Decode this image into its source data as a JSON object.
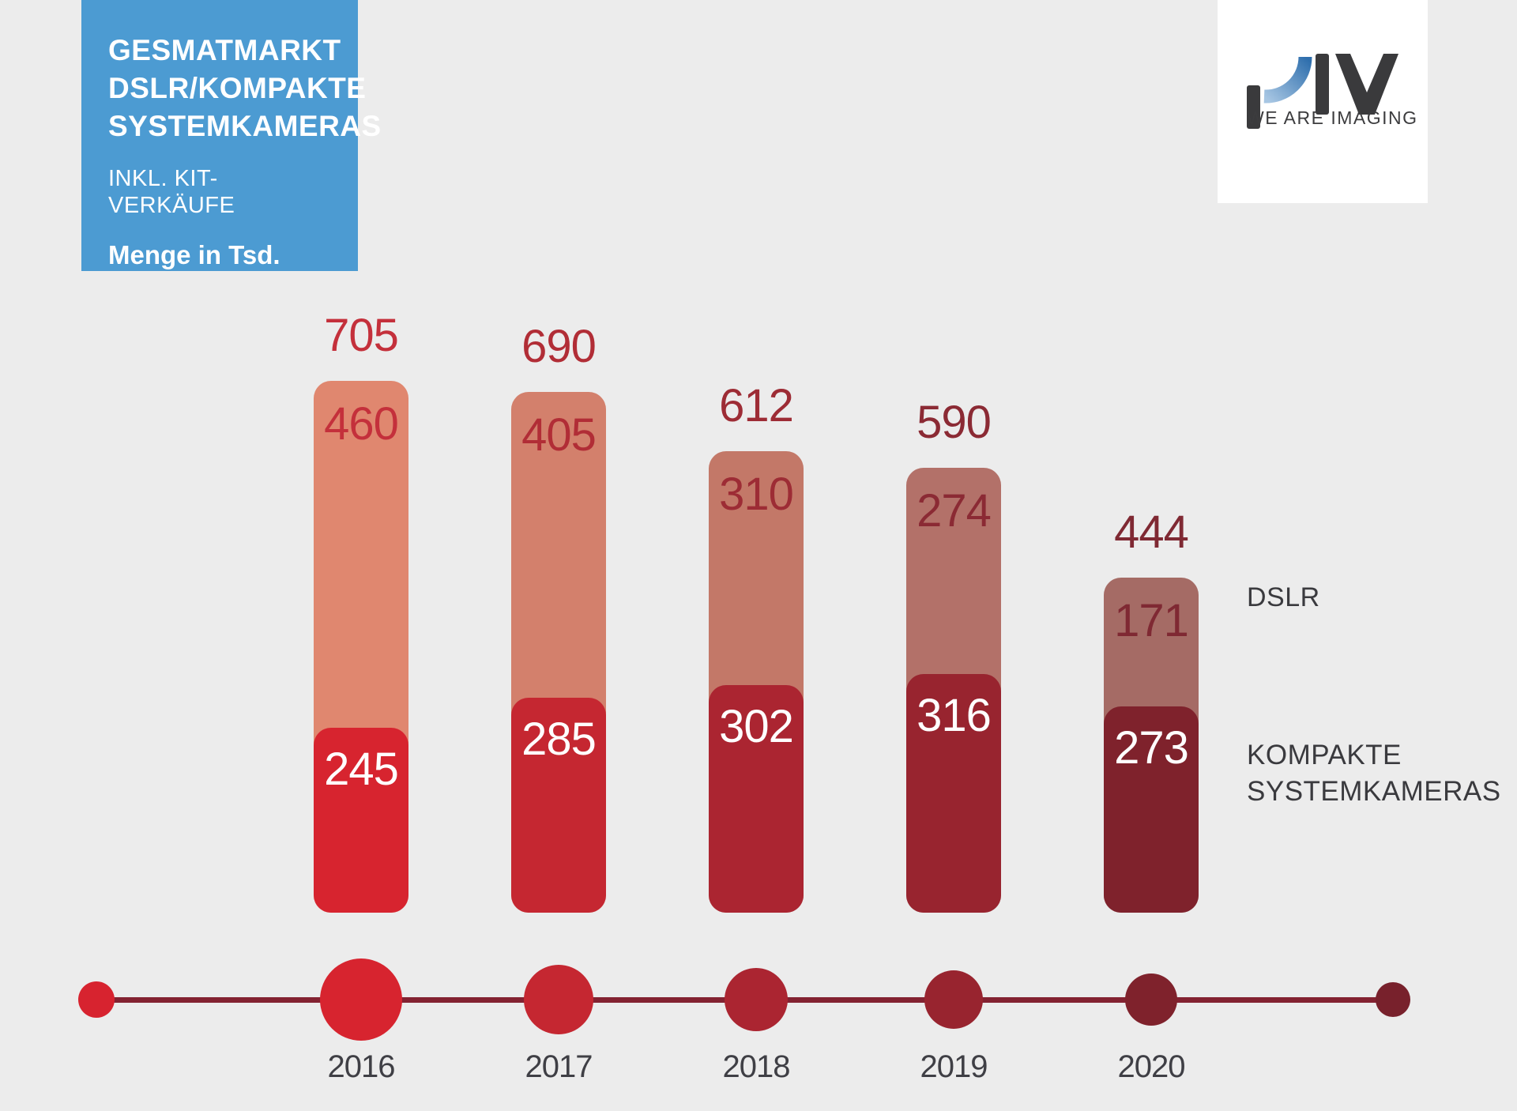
{
  "page": {
    "background": "#ECECEC"
  },
  "title_box": {
    "background": "#4C9BD2",
    "line1": "GESMATMARKT",
    "line2": "DSLR/KOMPAKTE",
    "line3": "SYSTEMKAMERAS",
    "subtitle": "INKL. KIT-VERKÄUFE",
    "unit_label": "Menge in Tsd."
  },
  "logo": {
    "tagline": "WE ARE IMAGING",
    "dark_color": "#3A3A3C",
    "blue_gradient_from": "#A7C6E3",
    "blue_gradient_to": "#2F6FAD"
  },
  "legend": {
    "dslr_label": "DSLR",
    "kompakte_line1": "KOMPAKTE",
    "kompakte_line2": "SYSTEMKAMERAS"
  },
  "chart_data": {
    "type": "bar",
    "stacked": true,
    "title": "GESMATMARKT DSLR/KOMPAKTE SYSTEMKAMERAS INKL. KIT-VERKÄUFE",
    "ylabel": "Menge in Tsd.",
    "categories": [
      "2016",
      "2017",
      "2018",
      "2019",
      "2020"
    ],
    "series": [
      {
        "name": "DSLR",
        "values": [
          460,
          405,
          310,
          274,
          171
        ],
        "colors": [
          "#E0876F",
          "#D3806C",
          "#C37868",
          "#B37169",
          "#A56B65"
        ]
      },
      {
        "name": "KOMPAKTE SYSTEMKAMERAS",
        "values": [
          245,
          285,
          302,
          316,
          273
        ],
        "colors": [
          "#D7242F",
          "#C52731",
          "#AB2531",
          "#98242F",
          "#7F222C"
        ],
        "value_text_color": "#FFFFFF"
      }
    ],
    "totals": [
      705,
      690,
      612,
      590,
      444
    ],
    "value_label_colors": [
      "#C4303B",
      "#B12D36",
      "#9D2C35",
      "#8B2A34",
      "#7F2933"
    ],
    "tick_label_color": "#3F3F45",
    "timeline": {
      "line_color": "#832231",
      "dot_colors": [
        "#D7242F",
        "#C52731",
        "#AB2531",
        "#98242F",
        "#7F222C"
      ],
      "start_dot_color": "#D7232F",
      "end_dot_color": "#78212C"
    }
  }
}
